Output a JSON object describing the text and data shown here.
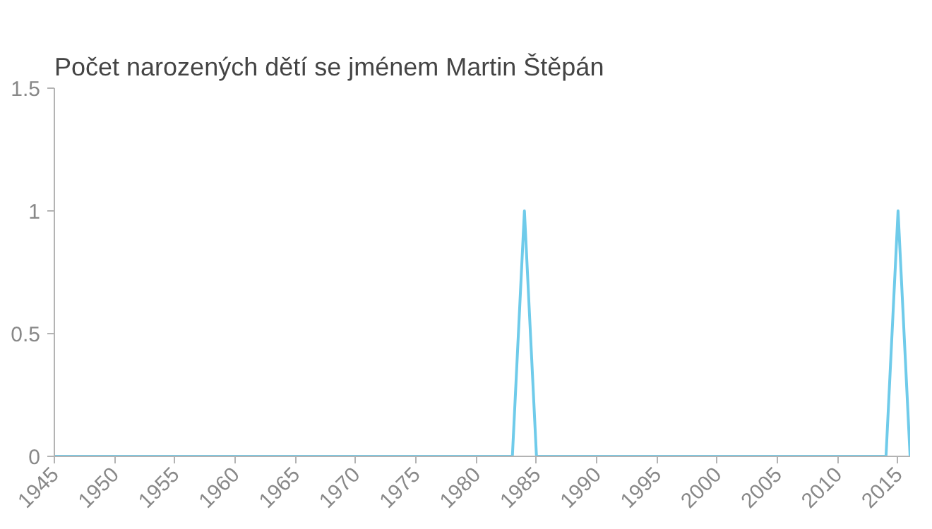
{
  "chart_data": {
    "type": "line",
    "title": "Počet narozených dětí se jménem Martin Štěpán",
    "x": [
      1945,
      1983,
      1984,
      1985,
      2014,
      2015,
      2016
    ],
    "series": [
      {
        "color": "#6fcbea",
        "values": [
          0,
          0,
          1,
          0,
          0,
          1,
          0
        ]
      }
    ],
    "xlim": [
      1945,
      2016
    ],
    "xticks": [
      1945,
      1950,
      1955,
      1960,
      1965,
      1970,
      1975,
      1980,
      1985,
      1990,
      1995,
      2000,
      2005,
      2010,
      2015
    ],
    "ylim": [
      0,
      1.5
    ],
    "yticks": [
      0,
      0.5,
      1,
      1.5
    ],
    "grid": false,
    "marker": "none",
    "line_style": "solid"
  }
}
